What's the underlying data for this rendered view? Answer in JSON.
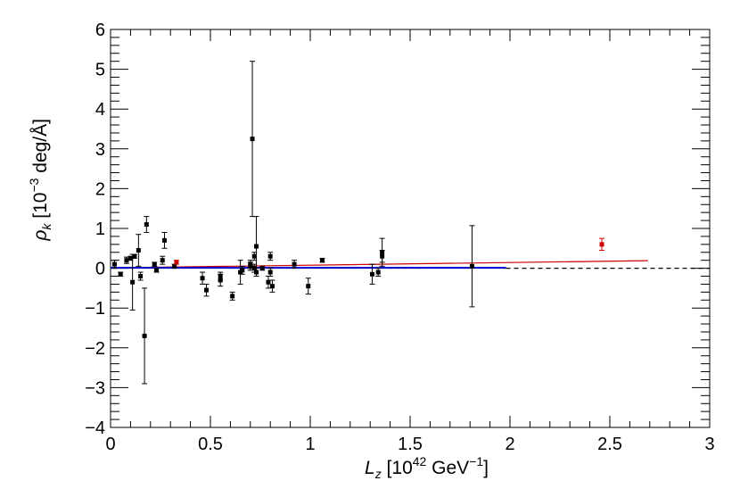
{
  "chart_data": {
    "type": "scatter",
    "xlim": [
      0,
      3
    ],
    "ylim": [
      -4,
      6
    ],
    "x_ticks": [
      "0",
      "0.5",
      "1",
      "1.5",
      "2",
      "2.5",
      "3"
    ],
    "y_ticks": [
      "−4",
      "−3",
      "−2",
      "−1",
      "0",
      "1",
      "2",
      "3",
      "4",
      "5",
      "6"
    ],
    "xlabel": {
      "symbol": "L",
      "sub": "z",
      "pre": " [10",
      "exp": "42",
      "post": " GeV",
      "post_exp": "−1",
      "close": "]"
    },
    "ylabel": {
      "symbol": "ρ",
      "sub": "k",
      "pre": " [10",
      "exp": "−3",
      "post": " deg/Å]"
    },
    "grid": false,
    "colors": {
      "black_points": "#000000",
      "red_points": "#cc0000",
      "red_line": "#cc0000",
      "blue_line": "#0000cc",
      "reference_line": "#000000"
    },
    "series": [
      {
        "marker": "square",
        "color": "#000000",
        "points": [
          {
            "x": 0.02,
            "y": 0.1,
            "err": 0.1
          },
          {
            "x": 0.05,
            "y": -0.15,
            "err": 0.05
          },
          {
            "x": 0.08,
            "y": 0.2,
            "err": 0.08
          },
          {
            "x": 0.1,
            "y": 0.25,
            "err": 0.05
          },
          {
            "x": 0.11,
            "y": -0.35,
            "err": 0.7
          },
          {
            "x": 0.12,
            "y": 0.3,
            "err": 0.05
          },
          {
            "x": 0.14,
            "y": 0.45,
            "err": 0.4
          },
          {
            "x": 0.15,
            "y": -0.2,
            "err": 0.1
          },
          {
            "x": 0.17,
            "y": -1.7,
            "err": 1.2
          },
          {
            "x": 0.18,
            "y": 1.1,
            "err": 0.2
          },
          {
            "x": 0.22,
            "y": 0.1,
            "err": 0.05
          },
          {
            "x": 0.23,
            "y": -0.05,
            "err": 0.05
          },
          {
            "x": 0.26,
            "y": 0.2,
            "err": 0.1
          },
          {
            "x": 0.27,
            "y": 0.7,
            "err": 0.2
          },
          {
            "x": 0.32,
            "y": 0.05,
            "err": 0.05
          },
          {
            "x": 0.46,
            "y": -0.25,
            "err": 0.15
          },
          {
            "x": 0.48,
            "y": -0.55,
            "err": 0.15
          },
          {
            "x": 0.55,
            "y": -0.2,
            "err": 0.1
          },
          {
            "x": 0.55,
            "y": -0.3,
            "err": 0.15
          },
          {
            "x": 0.61,
            "y": -0.7,
            "err": 0.1
          },
          {
            "x": 0.65,
            "y": -0.1,
            "err": 0.3
          },
          {
            "x": 0.66,
            "y": -0.05,
            "err": 0.1
          },
          {
            "x": 0.7,
            "y": 0.1,
            "err": 0.1
          },
          {
            "x": 0.7,
            "y": 0.05,
            "err": 0.1
          },
          {
            "x": 0.71,
            "y": 3.25,
            "err": 1.95
          },
          {
            "x": 0.72,
            "y": 0.3,
            "err": 0.1
          },
          {
            "x": 0.72,
            "y": 0.0,
            "err": 0.1
          },
          {
            "x": 0.73,
            "y": 0.55,
            "err": 0.75
          },
          {
            "x": 0.73,
            "y": -0.1,
            "err": 0.1
          },
          {
            "x": 0.76,
            "y": 0.0,
            "err": 0.05
          },
          {
            "x": 0.79,
            "y": -0.35,
            "err": 0.15
          },
          {
            "x": 0.8,
            "y": 0.3,
            "err": 0.1
          },
          {
            "x": 0.8,
            "y": -0.1,
            "err": 0.1
          },
          {
            "x": 0.81,
            "y": -0.45,
            "err": 0.15
          },
          {
            "x": 0.92,
            "y": 0.1,
            "err": 0.1
          },
          {
            "x": 0.99,
            "y": -0.45,
            "err": 0.2
          },
          {
            "x": 1.06,
            "y": 0.2,
            "err": 0.05
          },
          {
            "x": 1.31,
            "y": -0.15,
            "err": 0.25
          },
          {
            "x": 1.34,
            "y": -0.1,
            "err": 0.1
          },
          {
            "x": 1.36,
            "y": 0.4,
            "err": 0.35
          },
          {
            "x": 1.36,
            "y": 0.3,
            "err": 0.15
          },
          {
            "x": 1.81,
            "y": 0.05,
            "err": 1.02
          }
        ]
      },
      {
        "marker": "square",
        "color": "#cc0000",
        "points": [
          {
            "x": 0.33,
            "y": 0.15,
            "err": 0.05
          },
          {
            "x": 2.46,
            "y": 0.6,
            "err": 0.15
          }
        ]
      }
    ],
    "lines": [
      {
        "color": "#cc0000",
        "style": "solid",
        "x": [
          0,
          2.69
        ],
        "y": [
          0.01,
          0.19
        ]
      },
      {
        "color": "#0000cc",
        "style": "solid",
        "x": [
          0,
          1.98
        ],
        "y": [
          0.01,
          0.01
        ]
      },
      {
        "color": "#000000",
        "style": "dashed",
        "x": [
          1.98,
          3.0
        ],
        "y": [
          0.0,
          0.0
        ]
      }
    ]
  }
}
